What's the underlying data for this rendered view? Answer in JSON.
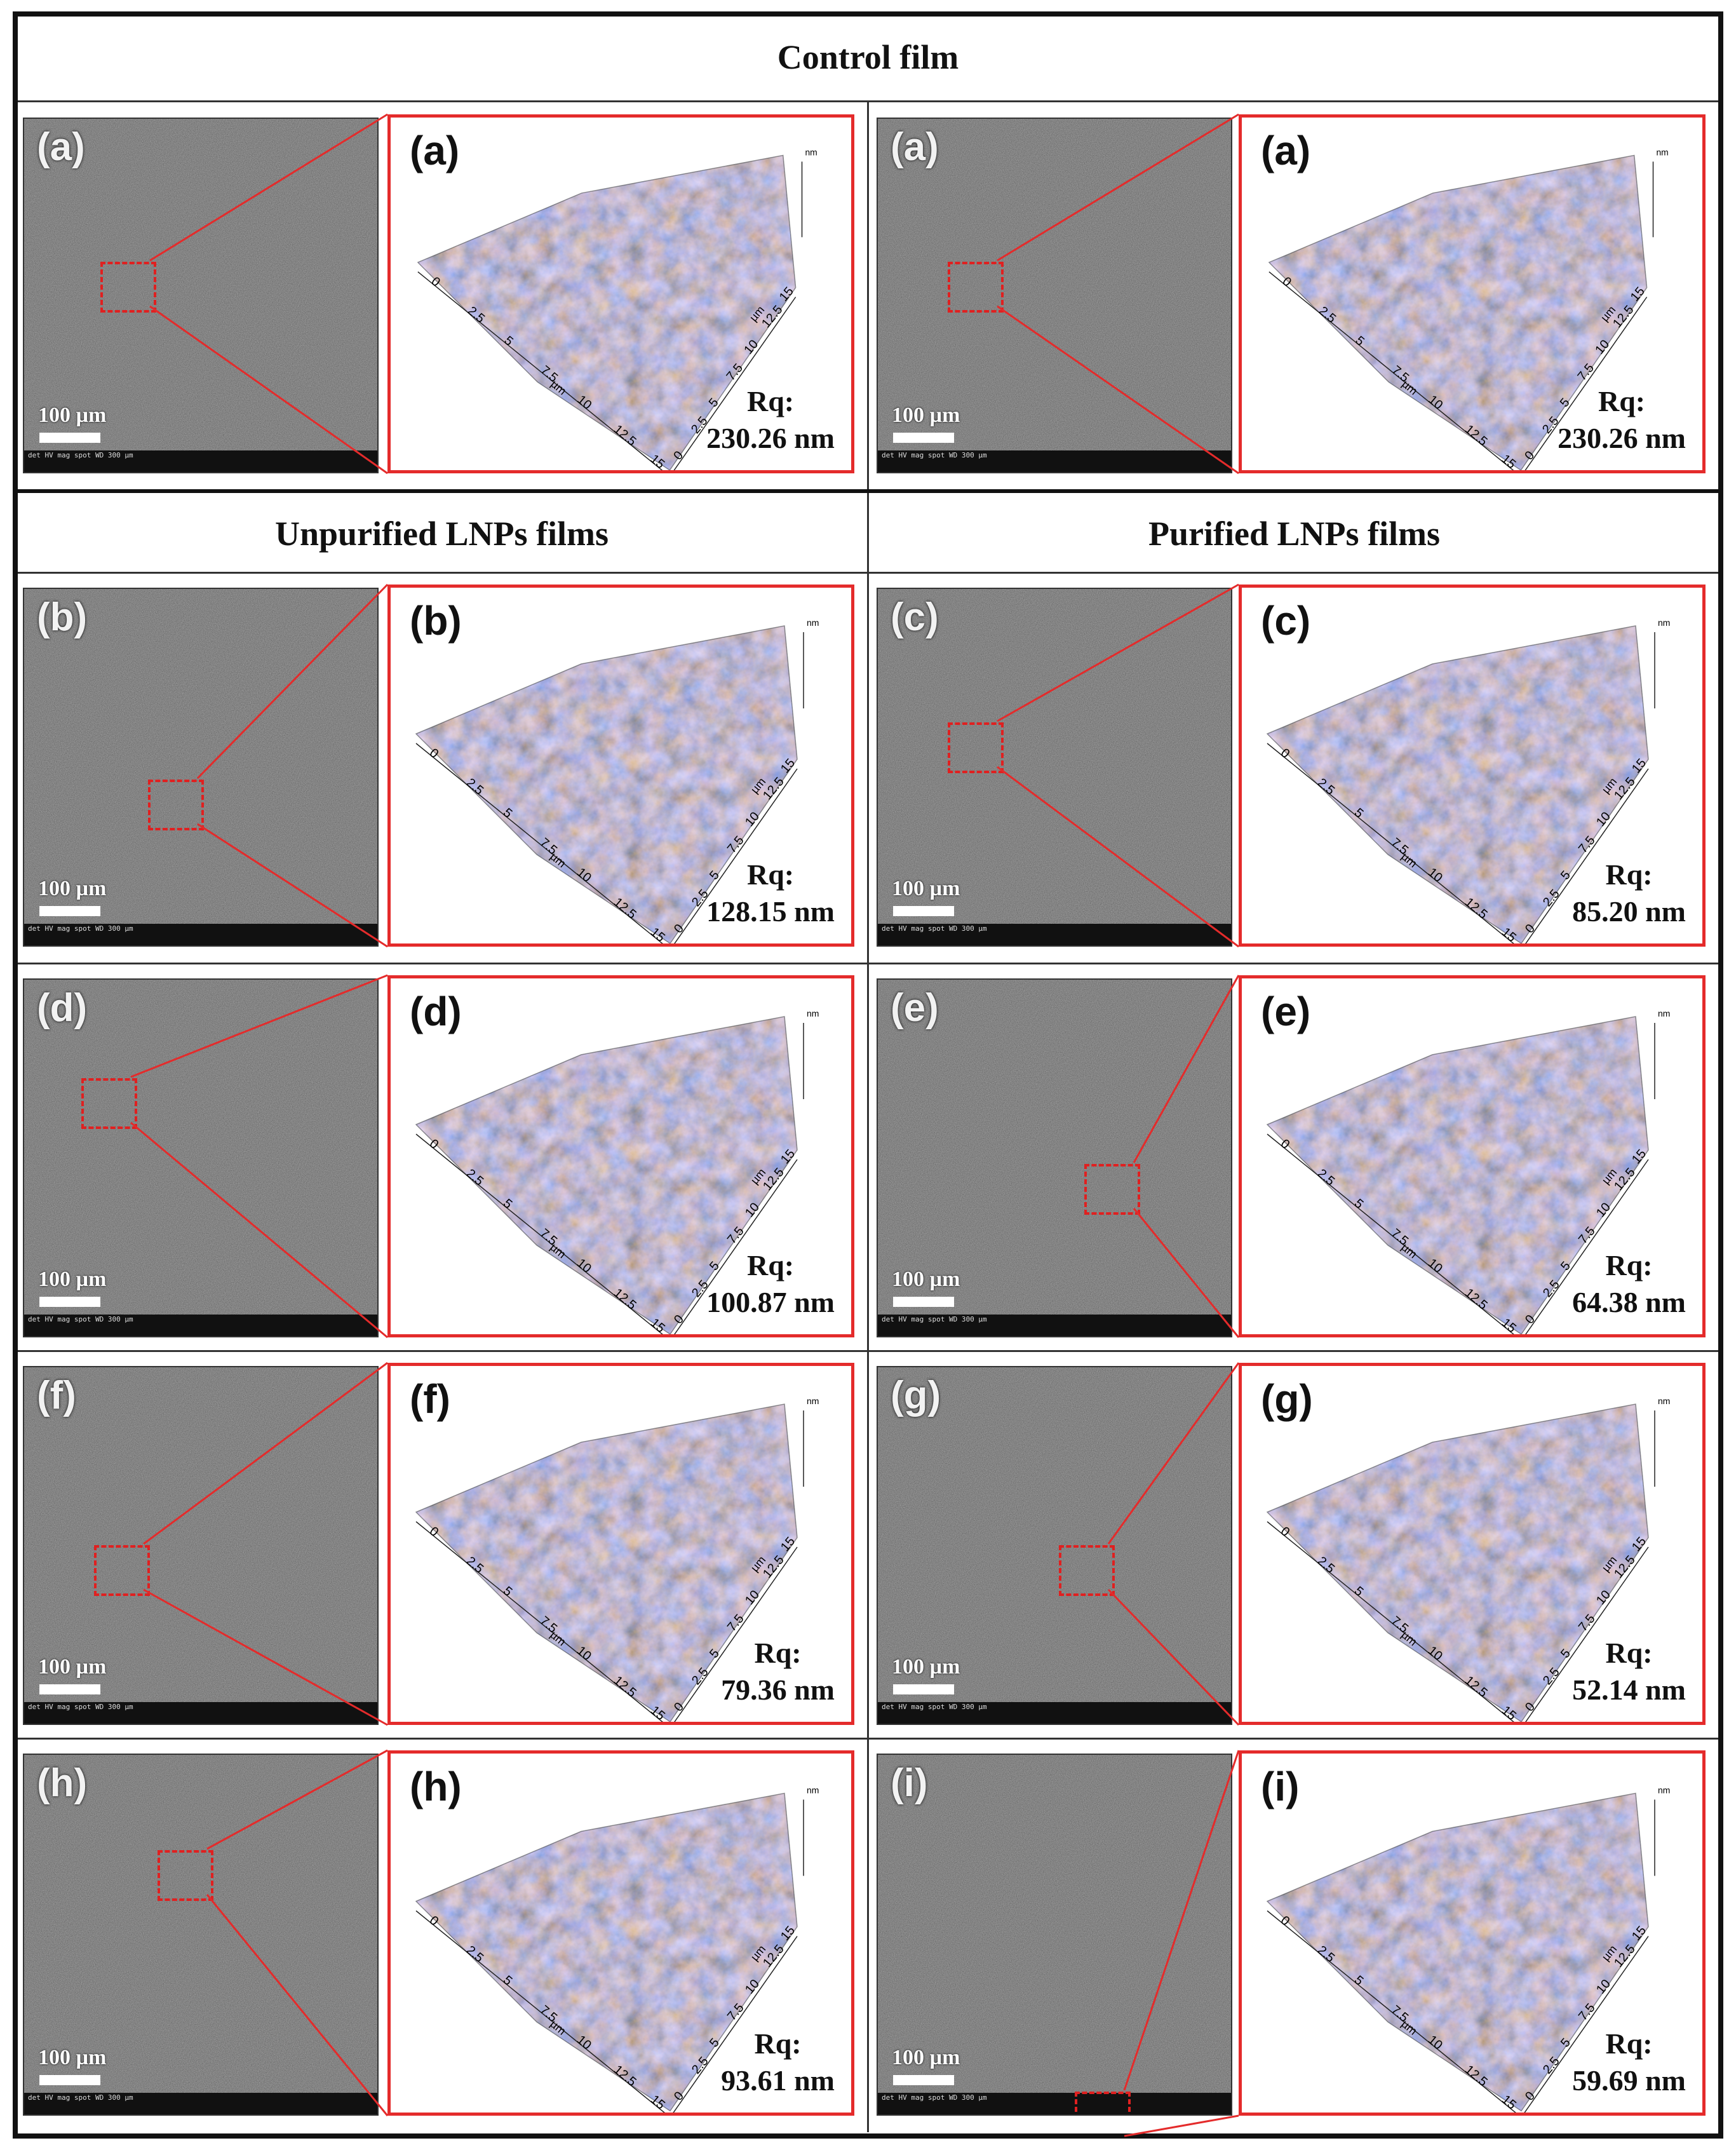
{
  "headers": {
    "control": "Control film",
    "unpurified": "Unpurified LNPs films",
    "purified": "Purified LNPs films"
  },
  "scale_bar_label": "100 µm",
  "sem_databar": "det  HV  mag  spot  WD      300 µm",
  "rq_prefix": "Rq:",
  "afm_axis": {
    "unit": "nm",
    "lateral_unit": "µm",
    "ticks": [
      "0",
      "2.5",
      "5",
      "7.5",
      "10",
      "12.5",
      "15"
    ]
  },
  "colors": {
    "frame": "#111111",
    "callout": "#e42b2b",
    "afm_high": "#d07a2a",
    "afm_low": "#1d6fb0"
  },
  "panels": [
    {
      "id": "a1",
      "label": "(a)",
      "rq": "230.26 nm",
      "group": "control"
    },
    {
      "id": "a2",
      "label": "(a)",
      "rq": "230.26 nm",
      "group": "control"
    },
    {
      "id": "b",
      "label": "(b)",
      "rq": "128.15 nm",
      "group": "unpurified"
    },
    {
      "id": "c",
      "label": "(c)",
      "rq": "85.20 nm",
      "group": "purified"
    },
    {
      "id": "d",
      "label": "(d)",
      "rq": "100.87 nm",
      "group": "unpurified"
    },
    {
      "id": "e",
      "label": "(e)",
      "rq": "64.38 nm",
      "group": "purified"
    },
    {
      "id": "f",
      "label": "(f)",
      "rq": "79.36 nm",
      "group": "unpurified"
    },
    {
      "id": "g",
      "label": "(g)",
      "rq": "52.14 nm",
      "group": "purified"
    },
    {
      "id": "h",
      "label": "(h)",
      "rq": "93.61 nm",
      "group": "unpurified"
    },
    {
      "id": "i",
      "label": "(i)",
      "rq": "59.69 nm",
      "group": "purified"
    }
  ]
}
